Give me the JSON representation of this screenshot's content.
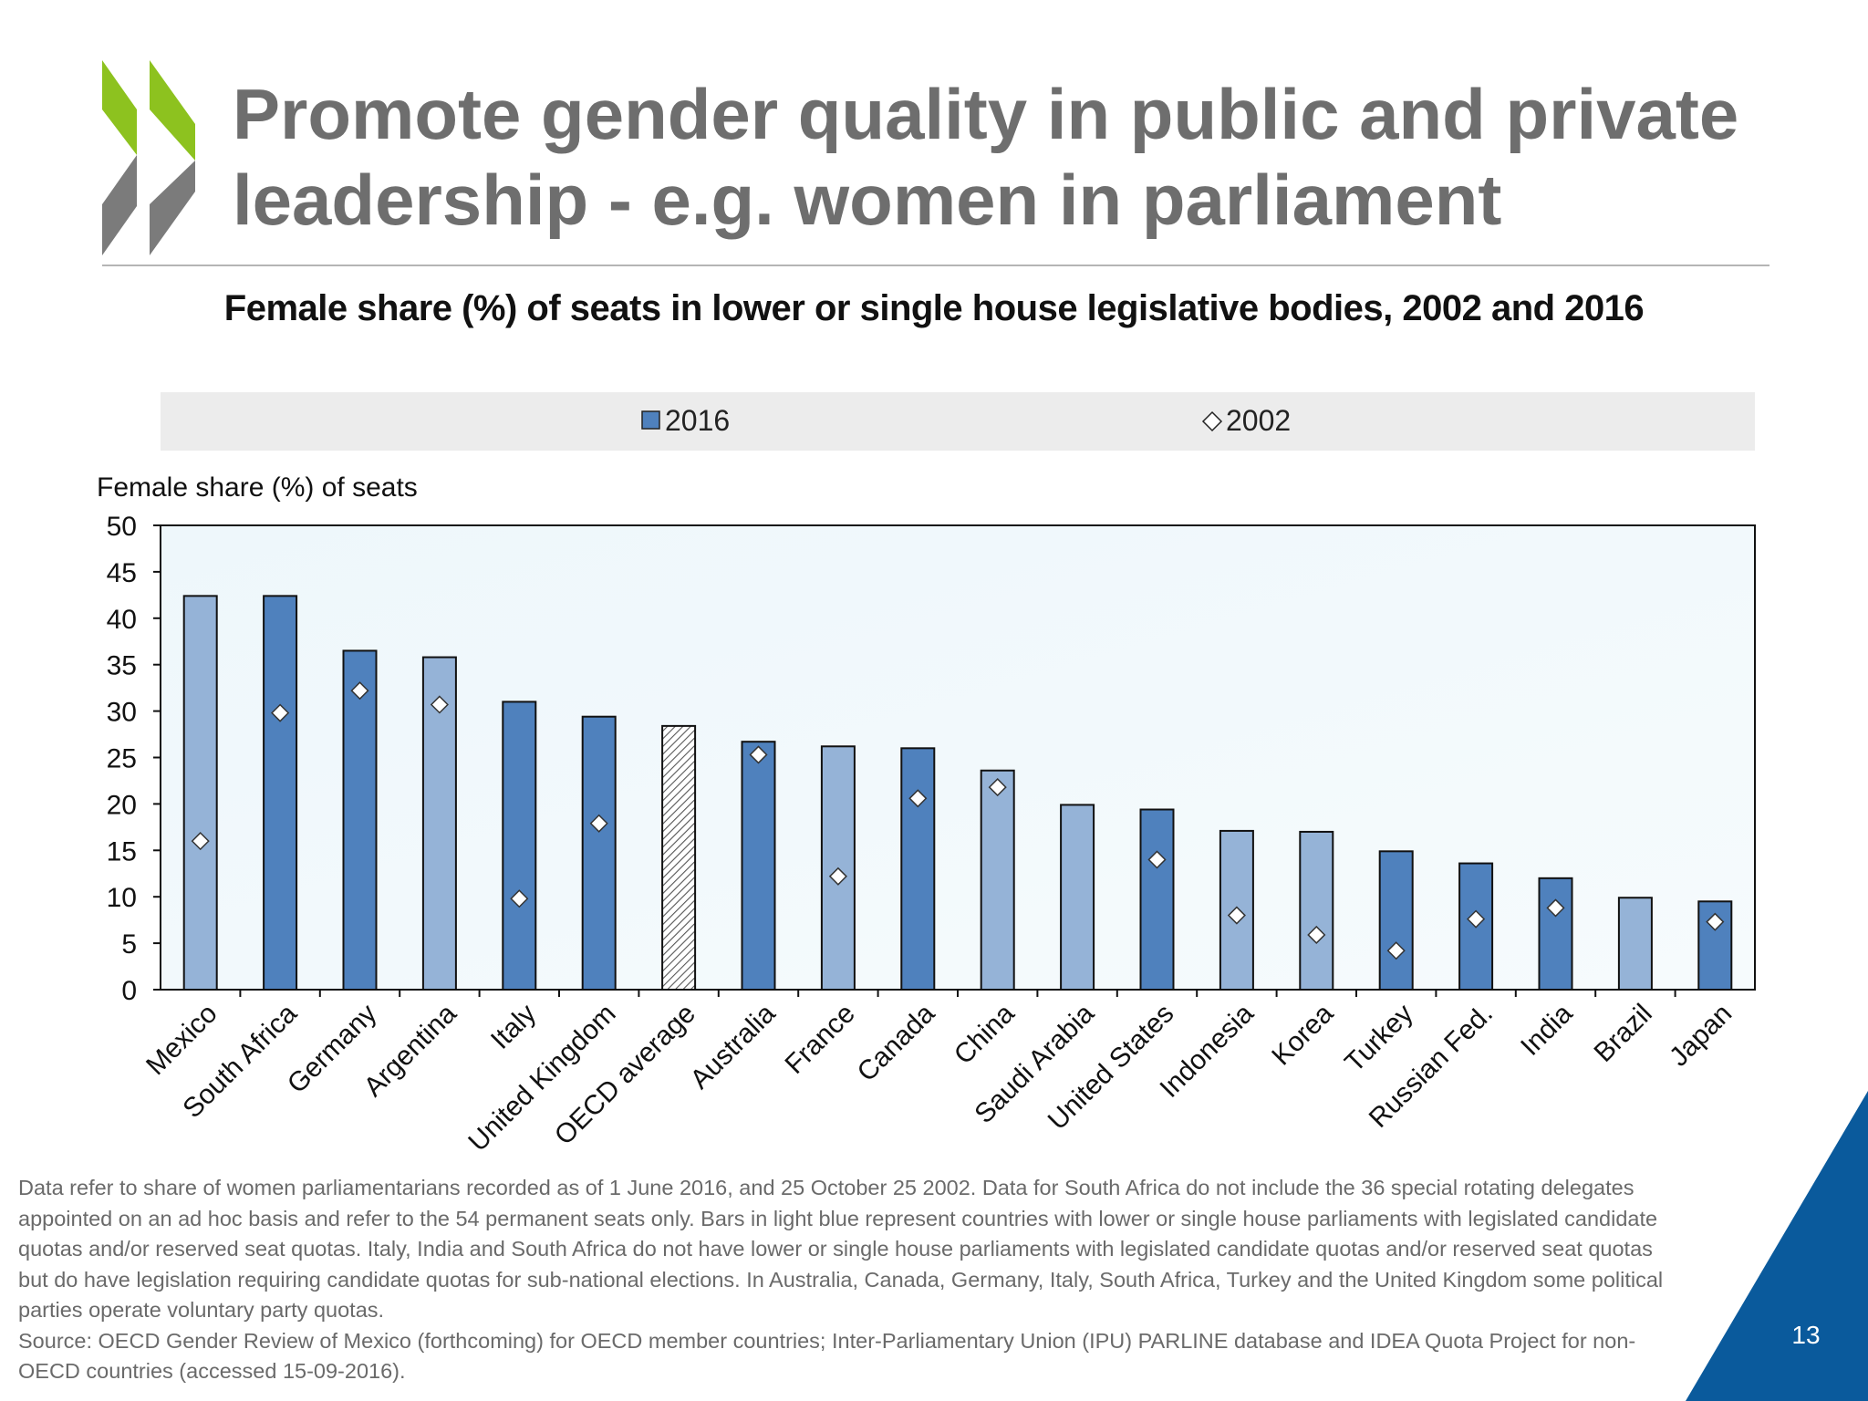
{
  "slide": {
    "title_line1": "Promote gender quality in public and private",
    "title_line2": "leadership - e.g. women in parliament",
    "page_number": "13",
    "note": "Data refer to share of women parliamentarians recorded as of 1 June 2016, and 25 October 25 2002. Data for South Africa do not include the 36 special rotating delegates appointed on an ad hoc basis and refer to the 54 permanent seats only. Bars in light blue represent countries with lower or single house parliaments with legislated candidate quotas and/or reserved seat quotas. Italy, India and South Africa do not have lower or single house parliaments with legislated candidate quotas and/or reserved seat quotas but do have legislation requiring candidate quotas for sub-national elections. In Australia, Canada, Germany, Italy, South Africa, Turkey and the United Kingdom some political parties operate voluntary party quotas.",
    "source": "Source: OECD Gender Review of Mexico (forthcoming) for OECD member countries; Inter-Parliamentary Union (IPU) PARLINE database and IDEA Quota Project for non-OECD countries (accessed 15-09-2016)."
  },
  "colors": {
    "title_gray": "#6e6e6e",
    "logo_green": "#8dc21f",
    "logo_gray": "#7b7b7b",
    "bar_dark": "#4f81bd",
    "bar_light": "#95b3d7",
    "corner_blue": "#0a5a9c"
  },
  "chart_data": {
    "type": "bar",
    "title": "Female share (%) of seats in lower or single house legislative bodies, 2002 and 2016",
    "ylabel": "Female share (%) of seats",
    "ylim": [
      0,
      50
    ],
    "yticks": [
      0,
      5,
      10,
      15,
      20,
      25,
      30,
      35,
      40,
      45,
      50
    ],
    "legend": [
      "2016",
      "2002"
    ],
    "legend_position": "top",
    "categories": [
      "Mexico",
      "South Africa",
      "Germany",
      "Argentina",
      "Italy",
      "United Kingdom",
      "OECD average",
      "Australia",
      "France",
      "Canada",
      "China",
      "Saudi Arabia",
      "United States",
      "Indonesia",
      "Korea",
      "Turkey",
      "Russian Fed.",
      "India",
      "Brazil",
      "Japan"
    ],
    "series": [
      {
        "name": "2016",
        "marker": "bar",
        "values": [
          42.4,
          42.4,
          36.5,
          35.8,
          31.0,
          29.4,
          28.4,
          26.7,
          26.2,
          26.0,
          23.6,
          19.9,
          19.4,
          17.1,
          17.0,
          14.9,
          13.6,
          12.0,
          9.9,
          9.5
        ]
      },
      {
        "name": "2002",
        "marker": "diamond",
        "values": [
          16.0,
          29.8,
          32.2,
          30.7,
          9.8,
          17.9,
          null,
          25.3,
          12.2,
          20.6,
          21.8,
          null,
          14.0,
          8.0,
          5.9,
          4.2,
          7.6,
          8.8,
          null,
          7.3
        ]
      }
    ],
    "bar_style": [
      "light",
      "dark",
      "dark",
      "light",
      "dark",
      "dark",
      "hatched",
      "dark",
      "light",
      "dark",
      "light",
      "light",
      "dark",
      "light",
      "light",
      "dark",
      "dark",
      "dark",
      "light",
      "dark"
    ]
  }
}
